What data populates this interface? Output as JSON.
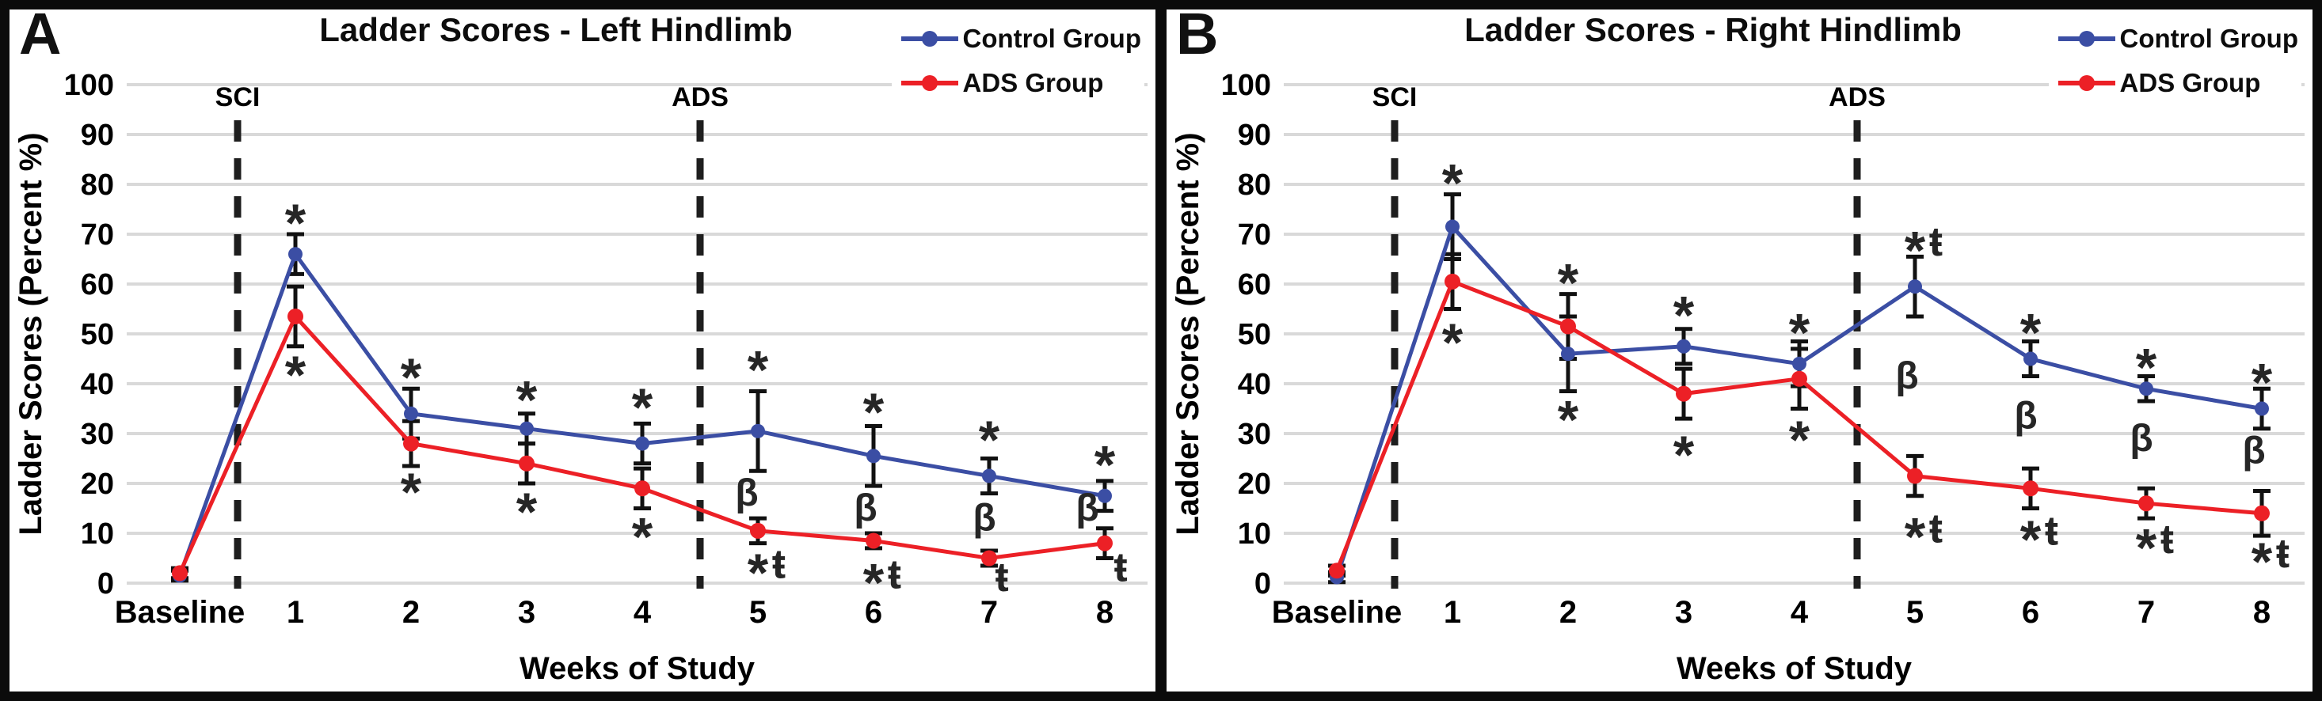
{
  "figure": {
    "background": "#ffffff",
    "frame_color": "#0b0b0b"
  },
  "colors": {
    "control": "#3B4EA4",
    "ads": "#EC2026",
    "gridline": "#D9D9D9",
    "event_line": "#1E1E1E",
    "annotation": "#262626",
    "text": "#000000",
    "error_bar": "#111111"
  },
  "legend": {
    "items": [
      {
        "label": "Control Group",
        "color": "#3B4EA4"
      },
      {
        "label": "ADS Group",
        "color": "#EC2026"
      }
    ]
  },
  "axes": {
    "ylabel": "Ladder Scores (Percent %)",
    "xlabel": "Weeks of Study",
    "yticks": [
      0,
      10,
      20,
      30,
      40,
      50,
      60,
      70,
      80,
      90,
      100
    ],
    "categories": [
      "Baseline",
      "1",
      "2",
      "3",
      "4",
      "5",
      "6",
      "7",
      "8"
    ]
  },
  "chart_data": [
    {
      "panel_label": "A",
      "type": "line",
      "title": "Ladder Scores - Left Hindlimb",
      "xlabel": "Weeks of Study",
      "ylabel": "Ladder Scores (Percent %)",
      "ylim": [
        0,
        100
      ],
      "ytick_step": 10,
      "grid": true,
      "legend_position": "top-right",
      "categories": [
        "Baseline",
        "1",
        "2",
        "3",
        "4",
        "5",
        "6",
        "7",
        "8"
      ],
      "events": [
        {
          "label": "SCI",
          "x": 0.5
        },
        {
          "label": "ADS",
          "x": 4.5
        }
      ],
      "series": [
        {
          "name": "Control Group",
          "color": "#3B4EA4",
          "values": [
            1.5,
            66,
            34,
            31,
            28,
            30.5,
            25.5,
            21.5,
            17.5
          ],
          "errors": [
            1,
            4,
            5,
            3,
            4,
            8,
            6,
            3.5,
            3
          ]
        },
        {
          "name": "ADS Group",
          "color": "#EC2026",
          "values": [
            2,
            53.5,
            28,
            24,
            19,
            10.5,
            8.5,
            5,
            8
          ],
          "errors": [
            1,
            6,
            4.5,
            4,
            4,
            2.5,
            1.5,
            1.5,
            3
          ]
        }
      ],
      "annotations": [
        {
          "x": 1,
          "y": 74,
          "text": "*"
        },
        {
          "x": 1,
          "y": 43.5,
          "text": "*"
        },
        {
          "x": 2,
          "y": 43,
          "text": "*"
        },
        {
          "x": 2,
          "y": 20,
          "text": "*"
        },
        {
          "x": 3,
          "y": 38.5,
          "text": "*"
        },
        {
          "x": 3,
          "y": 16,
          "text": "*"
        },
        {
          "x": 4,
          "y": 37,
          "text": "*"
        },
        {
          "x": 4,
          "y": 11,
          "text": "*"
        },
        {
          "x": 5,
          "y": 44.5,
          "text": "*"
        },
        {
          "x": 5,
          "y": 17.5,
          "text": "β",
          "dx": -14
        },
        {
          "x": 5,
          "y": 3.8,
          "text": "*ŧ"
        },
        {
          "x": 6,
          "y": 36,
          "text": "*"
        },
        {
          "x": 6,
          "y": 14.5,
          "text": "β",
          "dx": -10
        },
        {
          "x": 6,
          "y": 1.8,
          "text": "*ŧ"
        },
        {
          "x": 7,
          "y": 30.5,
          "text": "*"
        },
        {
          "x": 7,
          "y": 12.5,
          "text": "β",
          "dx": -6
        },
        {
          "x": 7,
          "y": 1.2,
          "text": "ŧ",
          "dx": 16
        },
        {
          "x": 8,
          "y": 25.5,
          "text": "*"
        },
        {
          "x": 8,
          "y": 14.5,
          "text": "β",
          "dx": -22
        },
        {
          "x": 8,
          "y": 3.2,
          "text": "ŧ",
          "dx": 20
        }
      ]
    },
    {
      "panel_label": "B",
      "type": "line",
      "title": "Ladder Scores - Right Hindlimb",
      "xlabel": "Weeks of Study",
      "ylabel": "Ladder Scores (Percent %)",
      "ylim": [
        0,
        100
      ],
      "ytick_step": 10,
      "grid": true,
      "legend_position": "top-right",
      "categories": [
        "Baseline",
        "1",
        "2",
        "3",
        "4",
        "5",
        "6",
        "7",
        "8"
      ],
      "events": [
        {
          "label": "SCI",
          "x": 0.5
        },
        {
          "label": "ADS",
          "x": 4.5
        }
      ],
      "series": [
        {
          "name": "Control Group",
          "color": "#3B4EA4",
          "values": [
            1.2,
            71.5,
            46,
            47.5,
            44,
            59.5,
            45,
            39,
            35
          ],
          "errors": [
            1,
            6.5,
            7.5,
            3.5,
            4.5,
            6,
            3.5,
            2.5,
            4
          ]
        },
        {
          "name": "ADS Group",
          "color": "#EC2026",
          "values": [
            2.5,
            60.5,
            51.5,
            38,
            41,
            21.5,
            19,
            16,
            14
          ],
          "errors": [
            1,
            5.5,
            6.5,
            5,
            6,
            4,
            4,
            3,
            4.5
          ]
        }
      ],
      "annotations": [
        {
          "x": 1,
          "y": 82,
          "text": "*"
        },
        {
          "x": 1,
          "y": 50,
          "text": "*"
        },
        {
          "x": 2,
          "y": 62,
          "text": "*"
        },
        {
          "x": 2,
          "y": 34.5,
          "text": "*"
        },
        {
          "x": 3,
          "y": 55.5,
          "text": "*"
        },
        {
          "x": 3,
          "y": 27.5,
          "text": "*"
        },
        {
          "x": 4,
          "y": 52,
          "text": "*"
        },
        {
          "x": 4,
          "y": 30.5,
          "text": "*"
        },
        {
          "x": 5,
          "y": 68.5,
          "text": "*ŧ"
        },
        {
          "x": 5,
          "y": 41,
          "text": "β",
          "dx": -10
        },
        {
          "x": 5,
          "y": 11,
          "text": "*ŧ"
        },
        {
          "x": 6,
          "y": 52,
          "text": "*"
        },
        {
          "x": 6,
          "y": 33,
          "text": "β",
          "dx": -6
        },
        {
          "x": 6,
          "y": 10.5,
          "text": "*ŧ"
        },
        {
          "x": 7,
          "y": 45,
          "text": "*"
        },
        {
          "x": 7,
          "y": 28.5,
          "text": "β",
          "dx": -6
        },
        {
          "x": 7,
          "y": 8.8,
          "text": "*ŧ"
        },
        {
          "x": 8,
          "y": 42,
          "text": "*"
        },
        {
          "x": 8,
          "y": 26,
          "text": "β",
          "dx": -10
        },
        {
          "x": 8,
          "y": 6,
          "text": "*ŧ"
        }
      ]
    }
  ]
}
